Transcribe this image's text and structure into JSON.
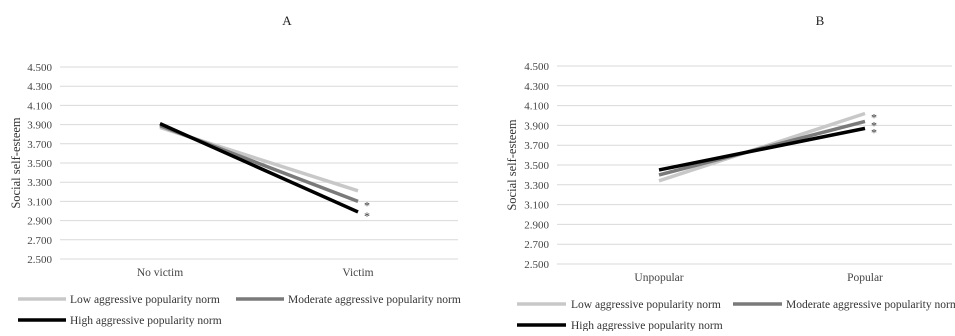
{
  "chart_data": [
    {
      "type": "line",
      "title": "A",
      "ylabel": "Social self-esteem",
      "xlabel": "",
      "categories": [
        "No victim",
        "Victim"
      ],
      "ylim": [
        2.5,
        4.5
      ],
      "yticks": [
        "2.500",
        "2.700",
        "2.900",
        "3.100",
        "3.300",
        "3.500",
        "3.700",
        "3.900",
        "4.100",
        "4.300",
        "4.500"
      ],
      "grid": true,
      "legend_position": "bottom",
      "series": [
        {
          "name": "Low aggressive popularity norm",
          "values": [
            3.87,
            3.21
          ],
          "color": "#c8c8c8",
          "marker": ""
        },
        {
          "name": "Moderate aggressive popularity norm",
          "values": [
            3.89,
            3.1
          ],
          "color": "#7a7a7a",
          "marker": "*"
        },
        {
          "name": "High aggressive popularity norm",
          "values": [
            3.91,
            2.99
          ],
          "color": "#000000",
          "marker": "*"
        }
      ]
    },
    {
      "type": "line",
      "title": "B",
      "ylabel": "Social self-esteem",
      "xlabel": "",
      "categories": [
        "Unpopular",
        "Popular"
      ],
      "ylim": [
        2.5,
        4.5
      ],
      "yticks": [
        "2.500",
        "2.700",
        "2.900",
        "3.100",
        "3.300",
        "3.500",
        "3.700",
        "3.900",
        "4.100",
        "4.300",
        "4.500"
      ],
      "grid": true,
      "legend_position": "bottom",
      "series": [
        {
          "name": "Low aggressive popularity norm",
          "values": [
            3.34,
            4.02
          ],
          "color": "#c8c8c8",
          "marker": "*"
        },
        {
          "name": "Moderate aggressive popularity norm",
          "values": [
            3.4,
            3.94
          ],
          "color": "#7a7a7a",
          "marker": "*"
        },
        {
          "name": "High aggressive popularity norm",
          "values": [
            3.45,
            3.87
          ],
          "color": "#000000",
          "marker": "*"
        }
      ]
    }
  ]
}
